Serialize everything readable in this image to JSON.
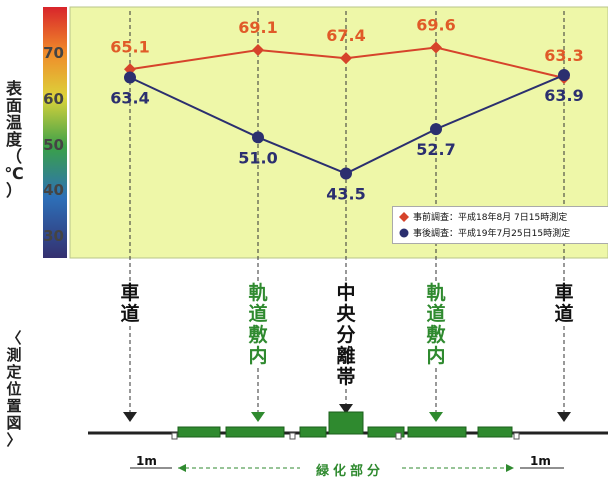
{
  "chart_data": {
    "type": "line",
    "ylabel": "表面温度（℃）",
    "yticks": [
      "70",
      "60",
      "50",
      "40",
      "30"
    ],
    "ylim": [
      26,
      78
    ],
    "positions": [
      "車道",
      "軌道敷内",
      "中央分離帯",
      "軌道敷内",
      "車道"
    ],
    "series": [
      {
        "name": "事前調査：平成18年8月 7日15時測定",
        "values": [
          65.1,
          69.1,
          67.4,
          69.6,
          63.3
        ],
        "color": "#d6432b",
        "marker": "diamond",
        "labels": [
          "65.1",
          "69.1",
          "67.4",
          "69.6",
          "63.3"
        ]
      },
      {
        "name": "事後調査：平成19年7月25日15時測定",
        "values": [
          63.4,
          51.0,
          43.5,
          52.7,
          63.9
        ],
        "color": "#2b2f6f",
        "marker": "circle",
        "labels": [
          "63.4",
          "51.0",
          "43.5",
          "52.7",
          "63.9"
        ]
      }
    ],
    "grid": false
  },
  "diagram": {
    "title": "〈測定位置図〉",
    "locations": [
      {
        "text": "車道",
        "color": "#111111"
      },
      {
        "text": "軌道敷内",
        "color": "#2f8a2f"
      },
      {
        "text": "中央分離帯",
        "color": "#111111"
      },
      {
        "text": "軌道敷内",
        "color": "#2f8a2f"
      },
      {
        "text": "車道",
        "color": "#111111"
      }
    ],
    "dim_left": "1m",
    "dim_right": "1m",
    "green_label": "緑化部分"
  },
  "colors": {
    "plot_bg": "#eef7a8",
    "line_red": "#d6432b",
    "line_navy": "#2b2f6f",
    "green": "#2f8a2f"
  }
}
